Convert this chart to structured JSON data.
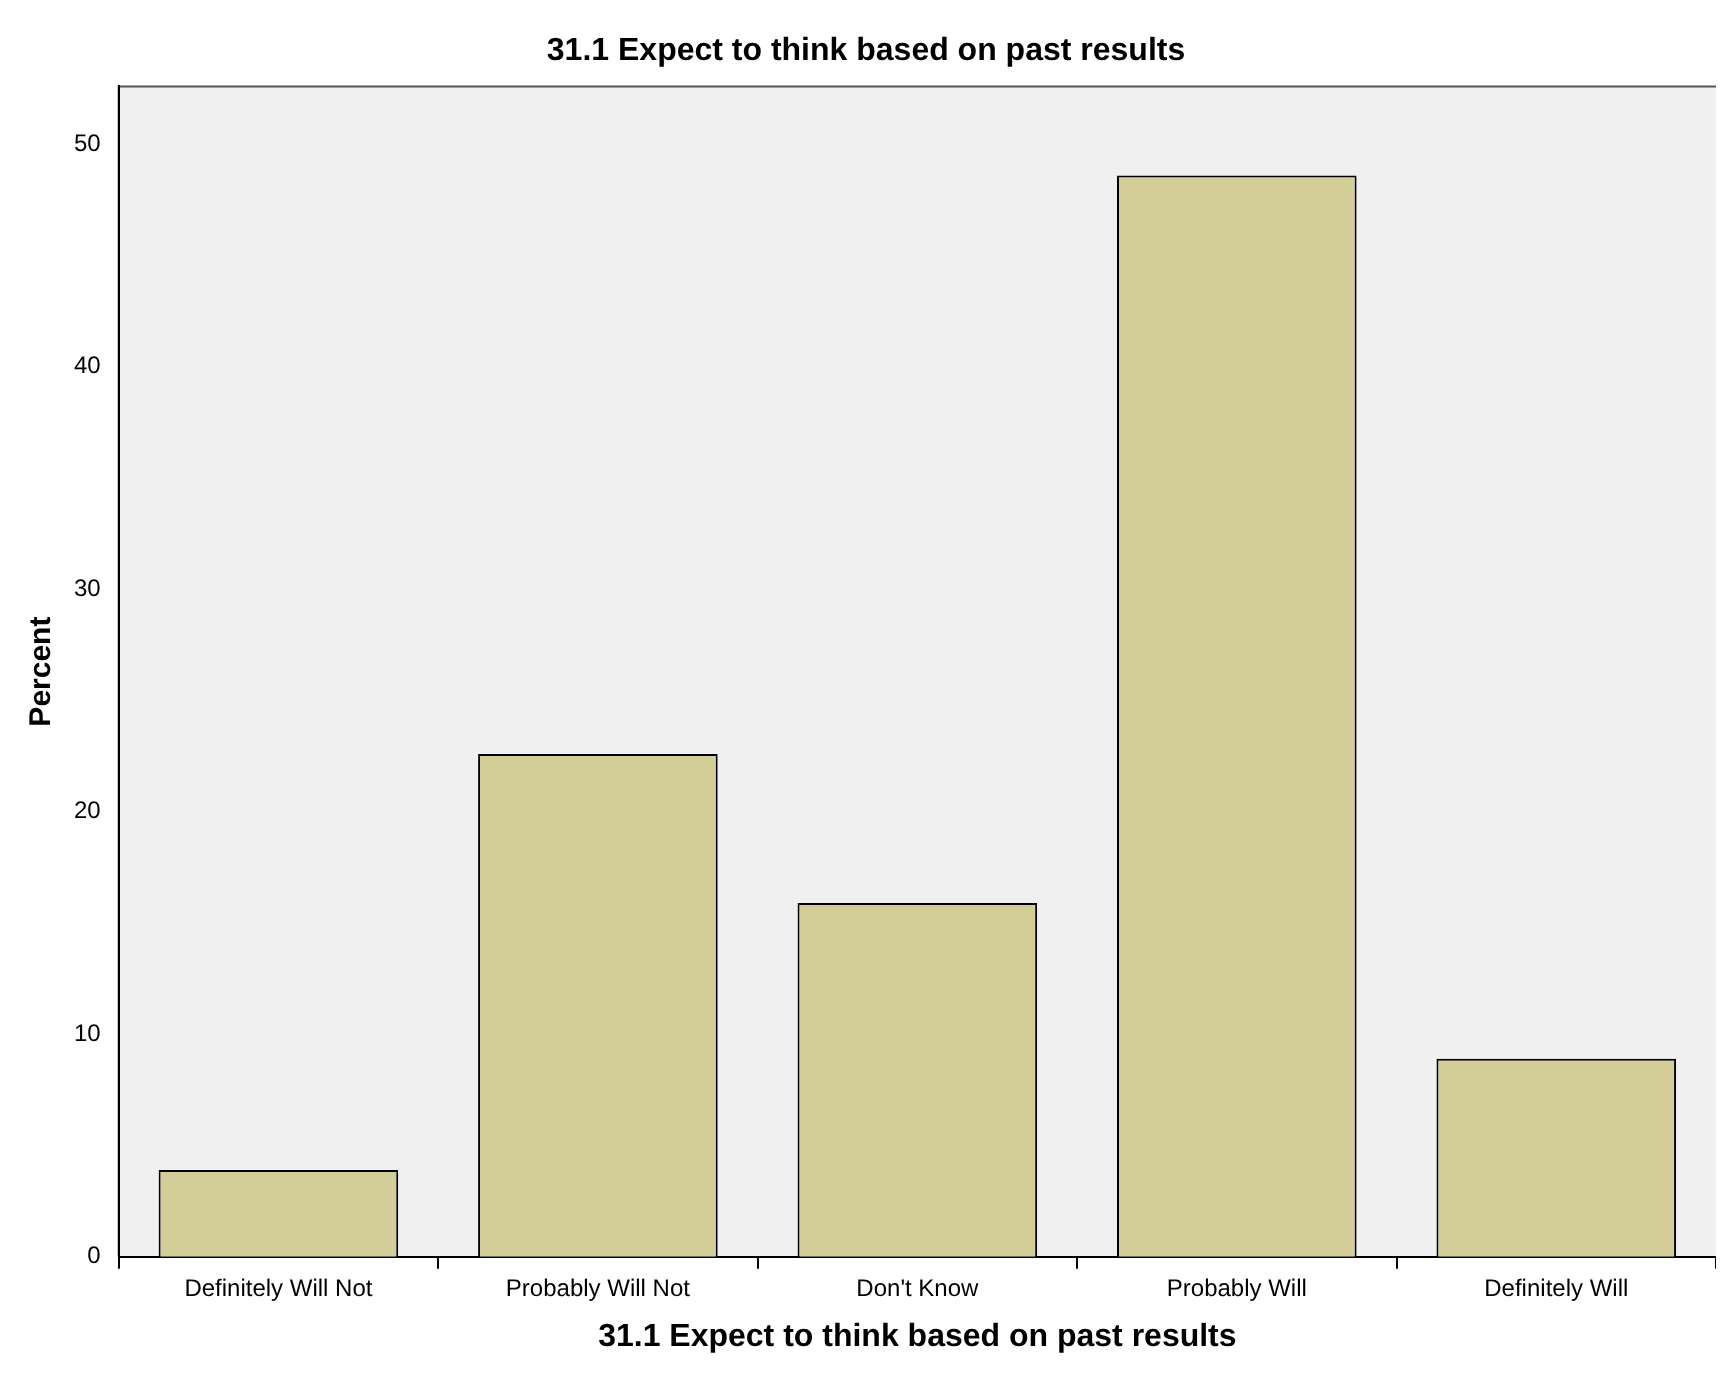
{
  "chart_data": {
    "type": "bar",
    "title": "31.1 Expect to think based on past results",
    "xlabel": "31.1 Expect to think based on past results",
    "ylabel": "Percent",
    "categories": [
      "Definitely Will Not",
      "Probably Will Not",
      "Don't Know",
      "Probably Will",
      "Definitely Will"
    ],
    "values": [
      3.9,
      22.6,
      15.9,
      48.6,
      8.9
    ],
    "color": "#d3ce97",
    "ylim": [
      0,
      52.6
    ],
    "yticks": [
      0,
      10,
      20,
      30,
      40,
      50
    ],
    "grid": false,
    "legend": false
  }
}
